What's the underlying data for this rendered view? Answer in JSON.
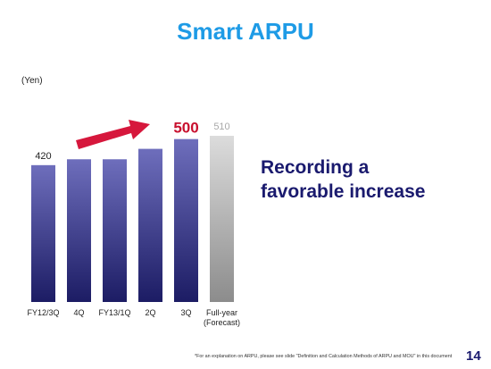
{
  "slide": {
    "title": "Smart ARPU",
    "headline_line1": "Recording a",
    "headline_line2": "favorable increase",
    "footnote": "*For an explanation on ARPU, please see slide \"Definition and Calculation Methods of ARPU and MOU\" in this document",
    "page_number": "14"
  },
  "chart_data": {
    "type": "bar",
    "ylabel": "(Yen)",
    "categories": [
      "FY12/3Q",
      "4Q",
      "FY13/1Q",
      "2Q",
      "3Q",
      "Full-year (Forecast)"
    ],
    "category_lines": [
      [
        "FY12/3Q"
      ],
      [
        "4Q"
      ],
      [
        "FY13/1Q"
      ],
      [
        "2Q"
      ],
      [
        "3Q"
      ],
      [
        "Full-year",
        "(Forecast)"
      ]
    ],
    "values": [
      420,
      438,
      438,
      470,
      500,
      510
    ],
    "data_labels": [
      "420",
      "",
      "",
      "",
      "500",
      "510"
    ],
    "forecast_index": 5,
    "ylim": [
      0,
      510
    ],
    "colors": {
      "bar_dark": "#1c1c64",
      "bar_light": "#6e6ebc",
      "forecast_dark": "#8c8c8c",
      "forecast_light": "#dcdcdc",
      "highlight_label": "#c8102e",
      "forecast_label": "#a8a8a8",
      "arrow": "#d6173c"
    },
    "annotation": "up-arrow"
  }
}
